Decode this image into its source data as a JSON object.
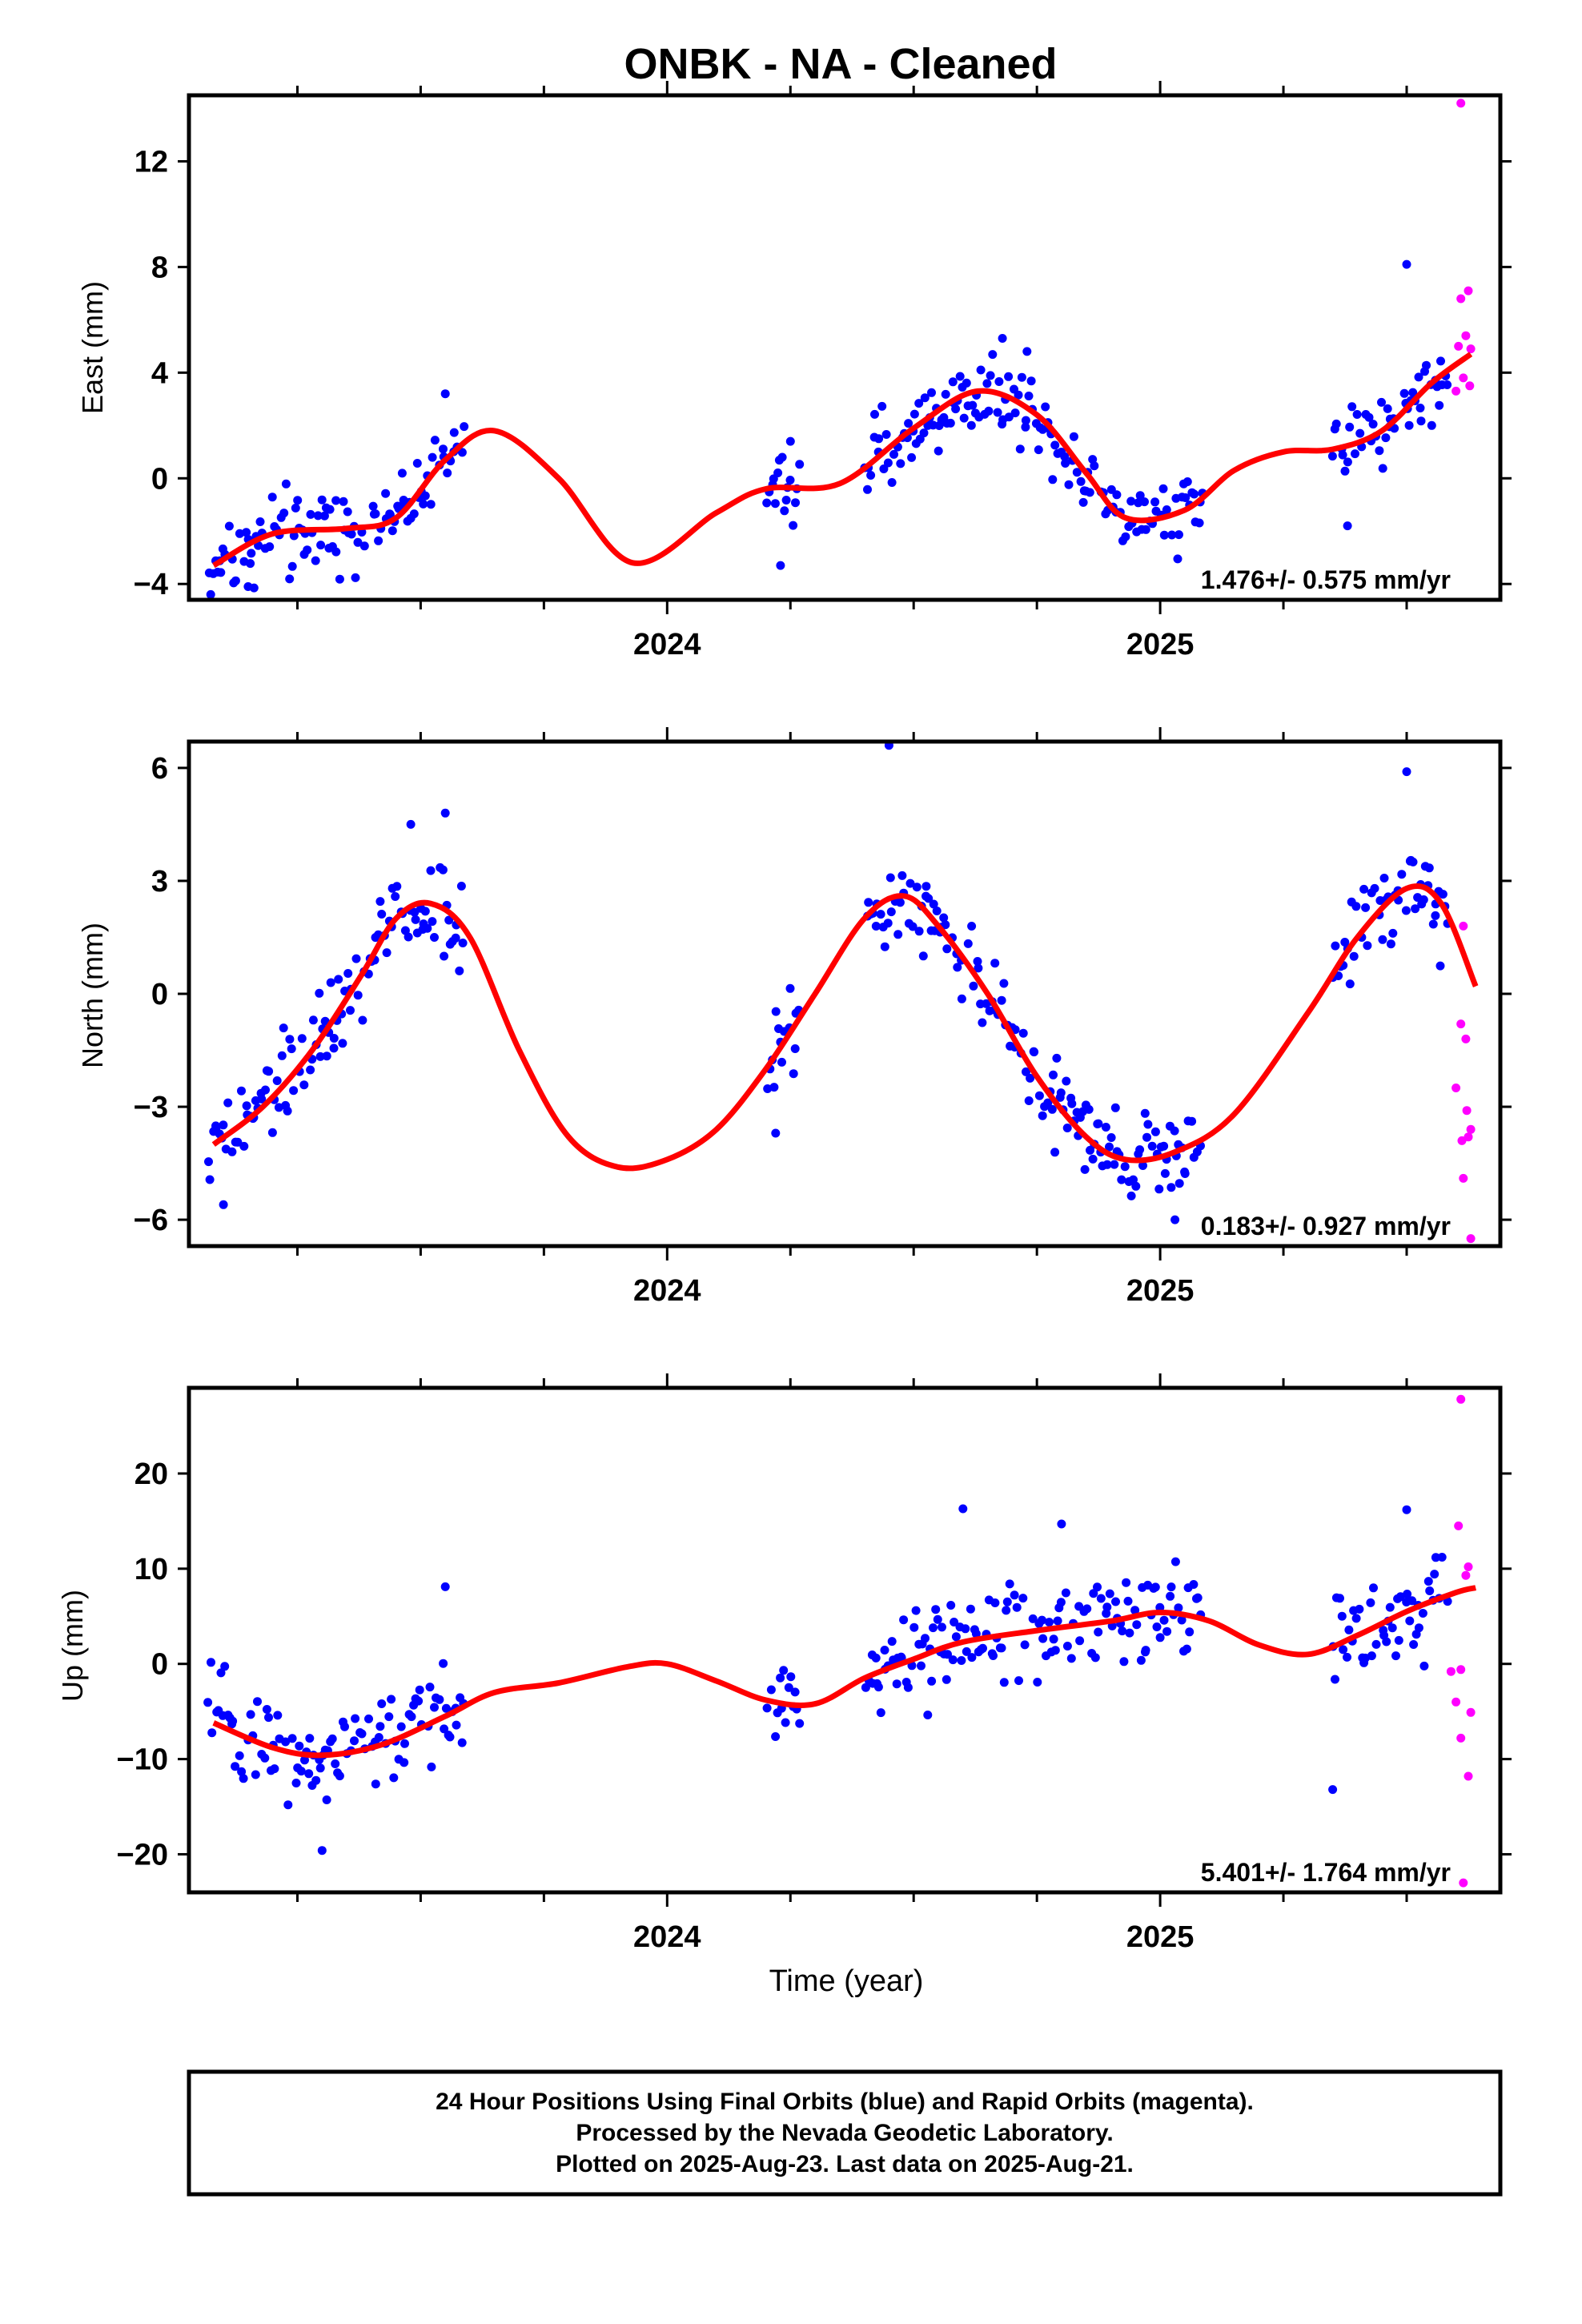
{
  "title": "ONBK  - NA - Cleaned",
  "xlabel": "Time (year)",
  "footer": {
    "line1": "24 Hour Positions Using Final Orbits (blue) and Rapid Orbits (magenta).",
    "line2": "Processed by the Nevada Geodetic Laboratory.",
    "line3": "Plotted on 2025-Aug-23. Last data on 2025-Aug-21."
  },
  "colors": {
    "final": "#0000ff",
    "rapid": "#ff00ff",
    "fit": "#ff0000"
  },
  "chart_data": [
    {
      "type": "scatter",
      "ylabel": "East (mm)",
      "rate": "1.476+/- 0.575 mm/yr",
      "xlim": [
        2023.03,
        2025.69
      ],
      "ylim": [
        -4.6,
        14.5
      ],
      "yticks": [
        "12",
        "8",
        "4",
        "0",
        "−4"
      ],
      "ytick_values": [
        12,
        8,
        4,
        0,
        -4
      ],
      "xticks": [
        "2024",
        "2025"
      ],
      "xtick_values": [
        2024,
        2025
      ],
      "gaps": [
        [
          2023.59,
          2024.2
        ],
        [
          2024.27,
          2024.4
        ],
        [
          2025.09,
          2025.35
        ]
      ],
      "fit_curve": {
        "x": [
          2023.08,
          2023.2,
          2023.35,
          2023.45,
          2023.55,
          2023.65,
          2023.78,
          2023.93,
          2024.1,
          2024.2,
          2024.35,
          2024.5,
          2024.63,
          2024.75,
          2024.85,
          2024.93,
          2025.05,
          2025.15,
          2025.25,
          2025.35,
          2025.45,
          2025.55,
          2025.63
        ],
        "y": [
          -3.3,
          -2.1,
          -1.9,
          -1.5,
          0.7,
          1.8,
          0.0,
          -3.2,
          -1.3,
          -0.4,
          -0.2,
          1.9,
          3.3,
          2.4,
          0.2,
          -1.5,
          -1.2,
          0.3,
          1.0,
          1.1,
          1.8,
          3.6,
          4.7
        ]
      },
      "rapid_points": [
        [
          2025.61,
          14.2
        ],
        [
          2025.625,
          7.1
        ],
        [
          2025.61,
          6.8
        ],
        [
          2025.62,
          5.4
        ],
        [
          2025.605,
          5.0
        ],
        [
          2025.63,
          4.9
        ],
        [
          2025.615,
          3.8
        ],
        [
          2025.6,
          3.3
        ],
        [
          2025.628,
          3.5
        ]
      ],
      "noise": 1.1,
      "outliers": [
        [
          2023.15,
          -4.1
        ],
        [
          2023.55,
          3.2
        ],
        [
          2024.68,
          5.3
        ],
        [
          2024.73,
          4.8
        ],
        [
          2025.5,
          8.1
        ],
        [
          2024.25,
          1.4
        ],
        [
          2024.23,
          -3.3
        ],
        [
          2025.38,
          -1.8
        ]
      ]
    },
    {
      "type": "scatter",
      "ylabel": "North (mm)",
      "rate": "0.183+/- 0.927 mm/yr",
      "xlim": [
        2023.03,
        2025.69
      ],
      "ylim": [
        -6.7,
        6.7
      ],
      "yticks": [
        "6",
        "3",
        "0",
        "−3",
        "−6"
      ],
      "ytick_values": [
        6,
        3,
        0,
        -3,
        -6
      ],
      "xticks": [
        "2024",
        "2025"
      ],
      "xtick_values": [
        2024,
        2025
      ],
      "gaps": [
        [
          2023.59,
          2024.2
        ],
        [
          2024.27,
          2024.4
        ],
        [
          2025.09,
          2025.35
        ]
      ],
      "fit_curve": {
        "x": [
          2023.08,
          2023.18,
          2023.28,
          2023.38,
          2023.45,
          2023.52,
          2023.6,
          2023.7,
          2023.8,
          2023.9,
          2024.0,
          2024.1,
          2024.2,
          2024.3,
          2024.4,
          2024.48,
          2024.55,
          2024.65,
          2024.75,
          2024.85,
          2024.93,
          2025.03,
          2025.15,
          2025.3,
          2025.4,
          2025.5,
          2025.57,
          2025.64
        ],
        "y": [
          -4.0,
          -3.0,
          -1.5,
          0.5,
          2.0,
          2.4,
          1.5,
          -1.5,
          -3.8,
          -4.6,
          -4.4,
          -3.6,
          -2.0,
          0.0,
          2.0,
          2.6,
          1.8,
          0.0,
          -2.2,
          -3.8,
          -4.4,
          -4.2,
          -3.2,
          -0.5,
          1.5,
          2.8,
          2.4,
          0.2
        ]
      },
      "rapid_points": [
        [
          2025.615,
          1.8
        ],
        [
          2025.61,
          -0.8
        ],
        [
          2025.62,
          -1.2
        ],
        [
          2025.6,
          -2.5
        ],
        [
          2025.622,
          -3.1
        ],
        [
          2025.63,
          -3.6
        ],
        [
          2025.612,
          -3.9
        ],
        [
          2025.625,
          -3.8
        ],
        [
          2025.615,
          -4.9
        ],
        [
          2025.63,
          -6.5
        ]
      ],
      "noise": 0.9,
      "outliers": [
        [
          2023.1,
          -5.6
        ],
        [
          2023.48,
          4.5
        ],
        [
          2024.45,
          6.6
        ],
        [
          2025.5,
          5.9
        ],
        [
          2023.55,
          4.8
        ],
        [
          2024.22,
          -3.7
        ],
        [
          2025.03,
          -6.0
        ]
      ]
    },
    {
      "type": "scatter",
      "ylabel": "Up (mm)",
      "rate": "5.401+/- 1.764 mm/yr",
      "xlim": [
        2023.03,
        2025.69
      ],
      "ylim": [
        -24,
        29
      ],
      "yticks": [
        "20",
        "10",
        "0",
        "−10",
        "−20"
      ],
      "ytick_values": [
        20,
        10,
        0,
        -10,
        -20
      ],
      "xticks": [
        "2024",
        "2025"
      ],
      "xtick_values": [
        2024,
        2025
      ],
      "gaps": [
        [
          2023.59,
          2024.2
        ],
        [
          2024.27,
          2024.4
        ],
        [
          2025.09,
          2025.35
        ]
      ],
      "fit_curve": {
        "x": [
          2023.08,
          2023.2,
          2023.3,
          2023.42,
          2023.55,
          2023.65,
          2023.78,
          2023.92,
          2024.0,
          2024.1,
          2024.2,
          2024.3,
          2024.4,
          2024.5,
          2024.6,
          2024.75,
          2024.9,
          2025.0,
          2025.1,
          2025.2,
          2025.3,
          2025.4,
          2025.5,
          2025.6,
          2025.64
        ],
        "y": [
          -6.2,
          -8.8,
          -9.6,
          -8.5,
          -5.5,
          -3.0,
          -2.0,
          -0.3,
          0.0,
          -1.8,
          -3.8,
          -4.2,
          -1.5,
          0.5,
          2.3,
          3.5,
          4.5,
          5.4,
          4.5,
          2.0,
          1.0,
          3.0,
          5.5,
          7.5,
          8.0
        ]
      },
      "rapid_points": [
        [
          2025.61,
          27.8
        ],
        [
          2025.605,
          14.5
        ],
        [
          2025.625,
          10.2
        ],
        [
          2025.62,
          9.3
        ],
        [
          2025.59,
          -0.8
        ],
        [
          2025.61,
          -0.6
        ],
        [
          2025.6,
          -4.0
        ],
        [
          2025.63,
          -5.1
        ],
        [
          2025.61,
          -7.8
        ],
        [
          2025.625,
          -11.8
        ],
        [
          2025.615,
          -23.0
        ]
      ],
      "noise": 4.0,
      "outliers": [
        [
          2023.3,
          -19.6
        ],
        [
          2024.6,
          16.3
        ],
        [
          2024.8,
          14.7
        ],
        [
          2025.5,
          16.2
        ],
        [
          2023.55,
          8.1
        ],
        [
          2025.35,
          -13.2
        ]
      ]
    }
  ]
}
